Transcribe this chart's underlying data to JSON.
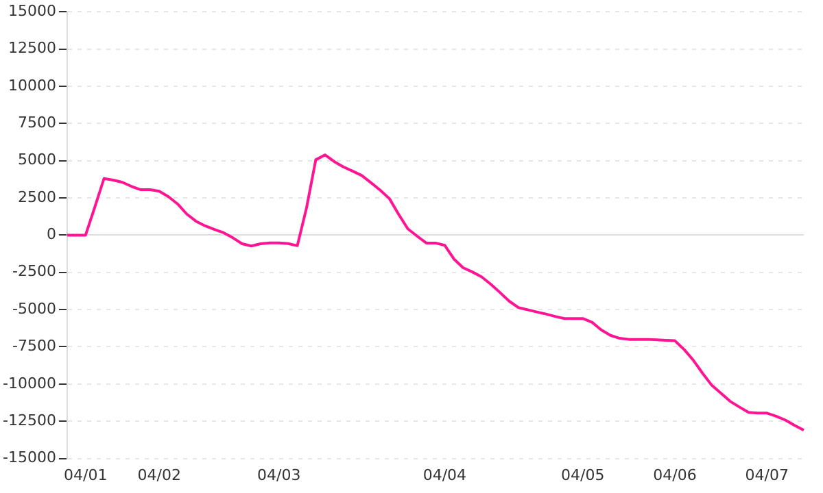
{
  "chart_data": {
    "type": "line",
    "categories": [
      null,
      null,
      "04/01",
      null,
      null,
      null,
      null,
      null,
      null,
      null,
      "04/02",
      null,
      null,
      null,
      null,
      null,
      null,
      null,
      null,
      null,
      null,
      null,
      null,
      "04/03",
      null,
      null,
      null,
      null,
      null,
      null,
      null,
      null,
      null,
      null,
      null,
      null,
      null,
      null,
      null,
      null,
      null,
      "04/04",
      null,
      null,
      null,
      null,
      null,
      null,
      null,
      null,
      null,
      null,
      null,
      null,
      null,
      null,
      "04/05",
      null,
      null,
      null,
      null,
      null,
      null,
      null,
      null,
      null,
      "04/06",
      null,
      null,
      null,
      null,
      null,
      null,
      null,
      null,
      null,
      "04/07",
      null,
      null,
      null,
      null
    ],
    "series": [
      {
        "color": "#ff1493",
        "values": [
          0,
          0,
          0,
          1870,
          3800,
          3700,
          3550,
          3270,
          3050,
          3050,
          2950,
          2580,
          2090,
          1410,
          930,
          620,
          380,
          160,
          -180,
          -580,
          -730,
          -580,
          -520,
          -520,
          -570,
          -710,
          1840,
          5060,
          5390,
          4940,
          4580,
          4300,
          4000,
          3520,
          3020,
          2450,
          1400,
          420,
          -60,
          -530,
          -530,
          -680,
          -1600,
          -2190,
          -2470,
          -2800,
          -3290,
          -3850,
          -4430,
          -4860,
          -5010,
          -5160,
          -5300,
          -5460,
          -5600,
          -5600,
          -5600,
          -5850,
          -6360,
          -6730,
          -6930,
          -7000,
          -7000,
          -7000,
          -7030,
          -7060,
          -7090,
          -7680,
          -8400,
          -9270,
          -10080,
          -10620,
          -11160,
          -11540,
          -11900,
          -11950,
          -11950,
          -12160,
          -12420,
          -12780,
          -13100
        ]
      }
    ],
    "ylim": [
      -15000,
      15000
    ],
    "yticks": [
      -15000,
      -12500,
      -10000,
      -7500,
      -5000,
      -2500,
      0,
      2500,
      5000,
      7500,
      10000,
      12500,
      15000
    ],
    "grid": "y",
    "legend": false,
    "marker": "none",
    "line_style": "solid"
  }
}
